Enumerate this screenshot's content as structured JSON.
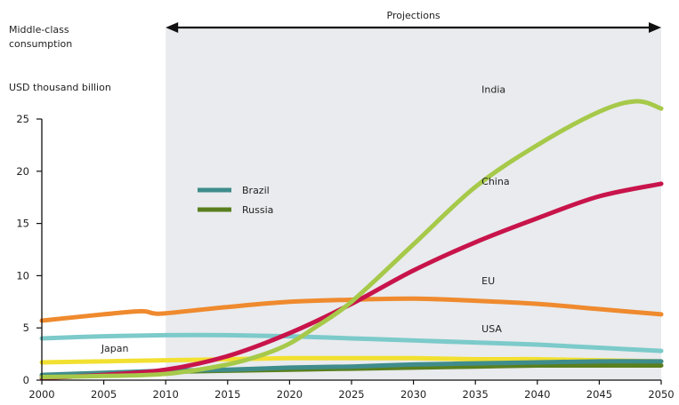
{
  "chart_data": {
    "type": "line",
    "title_lines": [
      "Middle-class",
      "consumption"
    ],
    "ylabel": "USD thousand billion",
    "projection_label": "Projections",
    "projection_start": 2010,
    "xlim": [
      2000,
      2050
    ],
    "ylim": [
      0,
      25
    ],
    "x_ticks": [
      2000,
      2005,
      2010,
      2015,
      2020,
      2025,
      2030,
      2035,
      2040,
      2045,
      2050
    ],
    "y_ticks": [
      0,
      5,
      10,
      15,
      20,
      25
    ],
    "legend_entries": [
      "Brazil",
      "Russia"
    ],
    "series": [
      {
        "name": "India",
        "color": "#a6c94a",
        "label_at": [
          2035.5,
          27.5
        ],
        "x": [
          2000,
          2005,
          2010,
          2015,
          2018,
          2020,
          2022,
          2025,
          2030,
          2035,
          2040,
          2045,
          2048,
          2050
        ],
        "y": [
          0.3,
          0.4,
          0.6,
          1.5,
          2.5,
          3.5,
          5,
          7.5,
          13,
          18.5,
          22.5,
          25.7,
          26.7,
          26.0
        ]
      },
      {
        "name": "China",
        "color": "#c8144b",
        "label_at": [
          2035.5,
          18.7
        ],
        "x": [
          2000,
          2005,
          2010,
          2015,
          2020,
          2025,
          2030,
          2035,
          2040,
          2045,
          2050
        ],
        "y": [
          0.2,
          0.5,
          1.0,
          2.3,
          4.5,
          7.3,
          10.5,
          13.2,
          15.5,
          17.6,
          18.8
        ]
      },
      {
        "name": "EU",
        "color": "#ef8a2e",
        "label_at": [
          2035.5,
          9.2
        ],
        "x": [
          2000,
          2005,
          2008,
          2009,
          2010,
          2015,
          2020,
          2025,
          2030,
          2035,
          2040,
          2045,
          2050
        ],
        "y": [
          5.7,
          6.3,
          6.6,
          6.4,
          6.4,
          7.0,
          7.5,
          7.7,
          7.8,
          7.6,
          7.3,
          6.8,
          6.3
        ]
      },
      {
        "name": "USA",
        "color": "#7ccaca",
        "label_at": [
          2035.5,
          4.6
        ],
        "x": [
          2000,
          2005,
          2010,
          2015,
          2020,
          2025,
          2030,
          2035,
          2040,
          2045,
          2050
        ],
        "y": [
          4.0,
          4.2,
          4.3,
          4.3,
          4.2,
          4.0,
          3.8,
          3.6,
          3.4,
          3.1,
          2.8
        ]
      },
      {
        "name": "Japan",
        "color": "#f2e031",
        "label_at": [
          2004.8,
          2.7
        ],
        "x": [
          2000,
          2005,
          2010,
          2015,
          2020,
          2025,
          2030,
          2035,
          2040,
          2045,
          2050
        ],
        "y": [
          1.7,
          1.8,
          1.9,
          2.0,
          2.1,
          2.1,
          2.1,
          2.0,
          2.0,
          1.9,
          1.8
        ]
      },
      {
        "name": "Brazil",
        "color": "#3f8c8c",
        "label_at": null,
        "x": [
          2000,
          2005,
          2010,
          2015,
          2020,
          2025,
          2030,
          2035,
          2040,
          2045,
          2050
        ],
        "y": [
          0.5,
          0.7,
          0.9,
          1.0,
          1.2,
          1.3,
          1.5,
          1.6,
          1.7,
          1.8,
          1.8
        ]
      },
      {
        "name": "Russia",
        "color": "#5a7f1f",
        "label_at": null,
        "x": [
          2000,
          2005,
          2010,
          2015,
          2020,
          2025,
          2030,
          2035,
          2040,
          2045,
          2050
        ],
        "y": [
          0.3,
          0.6,
          0.8,
          0.9,
          1.0,
          1.1,
          1.2,
          1.3,
          1.4,
          1.4,
          1.4
        ]
      }
    ]
  }
}
